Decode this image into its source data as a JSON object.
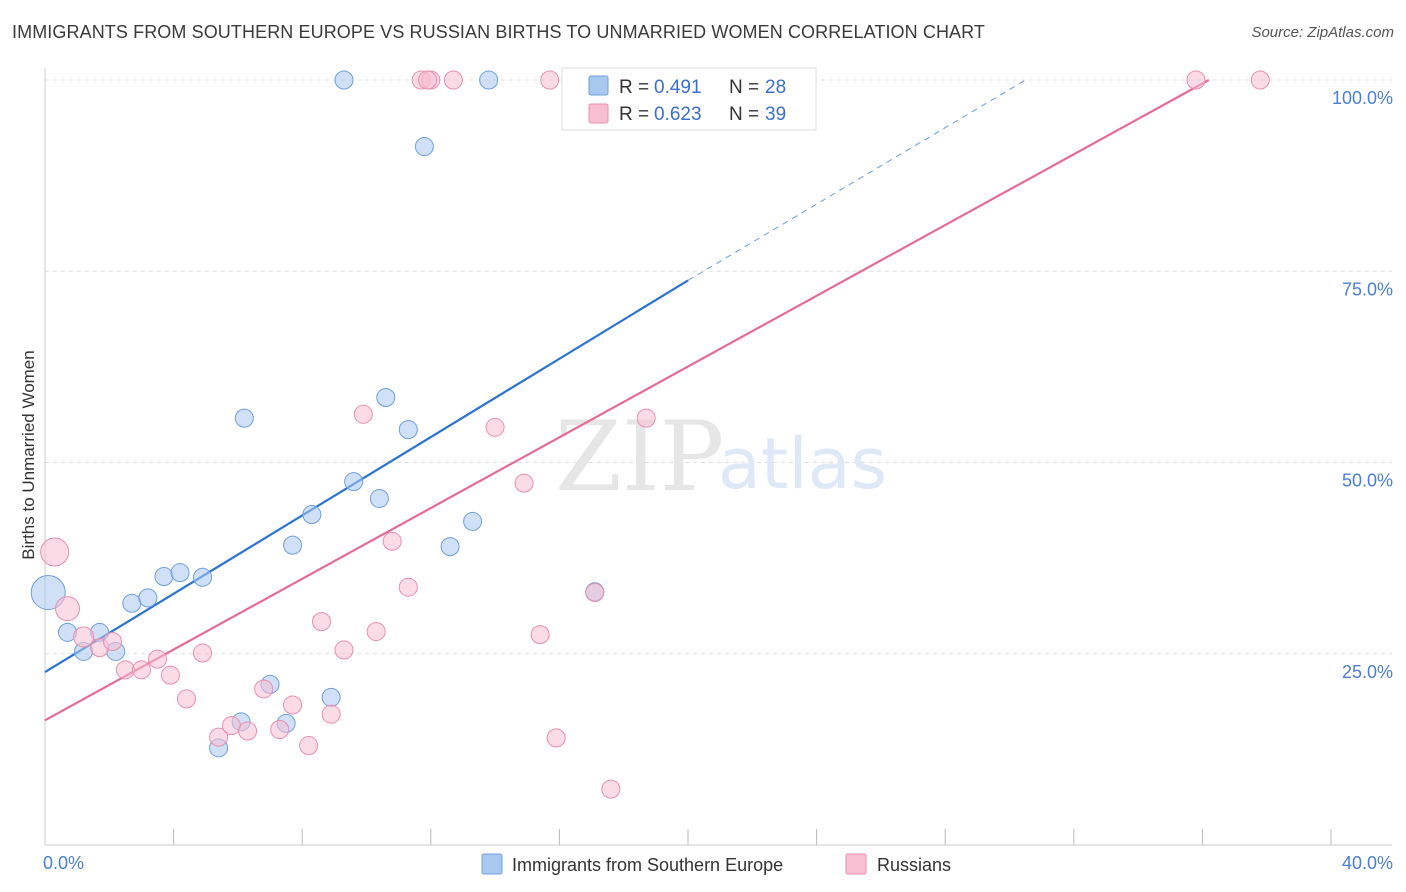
{
  "header": {
    "title": "IMMIGRANTS FROM SOUTHERN EUROPE VS RUSSIAN BIRTHS TO UNMARRIED WOMEN CORRELATION CHART",
    "source": "Source: ZipAtlas.com"
  },
  "watermark": {
    "zip": "ZIP",
    "atlas": "atlas"
  },
  "colors": {
    "blue_fill": "#a9c8f0",
    "blue_stroke": "#6f9fdc",
    "blue_line": "#2c74d0",
    "pink_fill": "#f7bfd1",
    "pink_stroke": "#e98fad",
    "pink_line": "#e46b95",
    "tick": "#4a7fd4",
    "grid": "#dddddd"
  },
  "chart_data": {
    "type": "scatter",
    "title": "IMMIGRANTS FROM SOUTHERN EUROPE VS RUSSIAN BIRTHS TO UNMARRIED WOMEN CORRELATION CHART",
    "xlabel": "",
    "ylabel": "Births to Unmarried Women",
    "xlim": [
      0,
      40
    ],
    "ylim": [
      0,
      100
    ],
    "x_tick_labels": [
      "0.0%",
      "40.0%"
    ],
    "y_tick_labels": [
      "25.0%",
      "50.0%",
      "75.0%",
      "100.0%"
    ],
    "y_ticks": [
      25,
      50,
      75,
      100
    ],
    "grid": true,
    "legend": {
      "position": "top-center",
      "entries": [
        {
          "r_label": "R =",
          "r_value": "0.491",
          "n_label": "N =",
          "n_value": "28"
        },
        {
          "r_label": "R =",
          "r_value": "0.623",
          "n_label": "N =",
          "n_value": "39"
        }
      ]
    },
    "series": [
      {
        "name": "Immigrants from Southern Europe",
        "color": "blue",
        "trend": {
          "x": [
            0,
            20
          ],
          "y": [
            22.6,
            73.8
          ],
          "extended_to": [
            30.5,
            100
          ]
        },
        "points": [
          {
            "x": 0.1,
            "y": 33.0,
            "size": 34
          },
          {
            "x": 0.7,
            "y": 27.8,
            "size": 18
          },
          {
            "x": 1.2,
            "y": 25.3,
            "size": 18
          },
          {
            "x": 1.7,
            "y": 27.8,
            "size": 18
          },
          {
            "x": 2.2,
            "y": 25.3,
            "size": 18
          },
          {
            "x": 2.7,
            "y": 31.6,
            "size": 18
          },
          {
            "x": 3.2,
            "y": 32.3,
            "size": 18
          },
          {
            "x": 3.7,
            "y": 35.1,
            "size": 18
          },
          {
            "x": 4.2,
            "y": 35.6,
            "size": 18
          },
          {
            "x": 4.9,
            "y": 35.0,
            "size": 18
          },
          {
            "x": 5.4,
            "y": 12.7,
            "size": 18
          },
          {
            "x": 6.1,
            "y": 16.1,
            "size": 18
          },
          {
            "x": 6.2,
            "y": 55.8,
            "size": 18
          },
          {
            "x": 7.0,
            "y": 21.0,
            "size": 18
          },
          {
            "x": 7.5,
            "y": 15.9,
            "size": 18
          },
          {
            "x": 7.7,
            "y": 39.2,
            "size": 18
          },
          {
            "x": 8.3,
            "y": 43.2,
            "size": 18
          },
          {
            "x": 8.9,
            "y": 19.3,
            "size": 18
          },
          {
            "x": 9.3,
            "y": 100.0,
            "size": 18
          },
          {
            "x": 9.6,
            "y": 47.5,
            "size": 18
          },
          {
            "x": 10.4,
            "y": 45.3,
            "size": 18
          },
          {
            "x": 10.6,
            "y": 58.5,
            "size": 18
          },
          {
            "x": 11.3,
            "y": 54.3,
            "size": 18
          },
          {
            "x": 11.8,
            "y": 91.3,
            "size": 18
          },
          {
            "x": 12.6,
            "y": 39.0,
            "size": 18
          },
          {
            "x": 13.3,
            "y": 42.3,
            "size": 18
          },
          {
            "x": 13.8,
            "y": 100.0,
            "size": 18
          },
          {
            "x": 17.1,
            "y": 33.1,
            "size": 18
          }
        ]
      },
      {
        "name": "Russians",
        "color": "pink",
        "trend": {
          "x": [
            0,
            36.2
          ],
          "y": [
            16.3,
            100
          ]
        },
        "points": [
          {
            "x": 0.3,
            "y": 38.3,
            "size": 28
          },
          {
            "x": 0.7,
            "y": 30.9,
            "size": 24
          },
          {
            "x": 1.2,
            "y": 27.2,
            "size": 20
          },
          {
            "x": 1.7,
            "y": 25.8,
            "size": 18
          },
          {
            "x": 2.1,
            "y": 26.6,
            "size": 18
          },
          {
            "x": 2.5,
            "y": 22.9,
            "size": 18
          },
          {
            "x": 3.0,
            "y": 22.9,
            "size": 18
          },
          {
            "x": 3.5,
            "y": 24.3,
            "size": 18
          },
          {
            "x": 3.9,
            "y": 22.2,
            "size": 18
          },
          {
            "x": 4.4,
            "y": 19.1,
            "size": 18
          },
          {
            "x": 4.9,
            "y": 25.1,
            "size": 18
          },
          {
            "x": 5.4,
            "y": 14.1,
            "size": 18
          },
          {
            "x": 5.8,
            "y": 15.6,
            "size": 18
          },
          {
            "x": 6.3,
            "y": 14.9,
            "size": 18
          },
          {
            "x": 6.8,
            "y": 20.4,
            "size": 18
          },
          {
            "x": 7.3,
            "y": 15.1,
            "size": 18
          },
          {
            "x": 7.7,
            "y": 18.3,
            "size": 18
          },
          {
            "x": 8.2,
            "y": 13.0,
            "size": 18
          },
          {
            "x": 8.6,
            "y": 29.2,
            "size": 18
          },
          {
            "x": 8.9,
            "y": 17.1,
            "size": 18
          },
          {
            "x": 9.3,
            "y": 25.5,
            "size": 18
          },
          {
            "x": 9.9,
            "y": 56.3,
            "size": 18
          },
          {
            "x": 10.3,
            "y": 27.9,
            "size": 18
          },
          {
            "x": 10.8,
            "y": 39.7,
            "size": 18
          },
          {
            "x": 11.3,
            "y": 33.7,
            "size": 18
          },
          {
            "x": 11.7,
            "y": 100.0,
            "size": 18
          },
          {
            "x": 12.0,
            "y": 100.0,
            "size": 18
          },
          {
            "x": 12.7,
            "y": 100.0,
            "size": 18
          },
          {
            "x": 14.0,
            "y": 54.6,
            "size": 18
          },
          {
            "x": 14.9,
            "y": 47.3,
            "size": 18
          },
          {
            "x": 15.4,
            "y": 27.5,
            "size": 18
          },
          {
            "x": 15.7,
            "y": 100.0,
            "size": 18
          },
          {
            "x": 15.9,
            "y": 14.0,
            "size": 18
          },
          {
            "x": 17.1,
            "y": 33.0,
            "size": 18
          },
          {
            "x": 17.6,
            "y": 7.3,
            "size": 18
          },
          {
            "x": 18.7,
            "y": 55.8,
            "size": 18
          },
          {
            "x": 35.8,
            "y": 100.0,
            "size": 18
          },
          {
            "x": 37.8,
            "y": 100.0,
            "size": 18
          },
          {
            "x": 11.9,
            "y": 100.0,
            "size": 18
          }
        ]
      }
    ]
  }
}
